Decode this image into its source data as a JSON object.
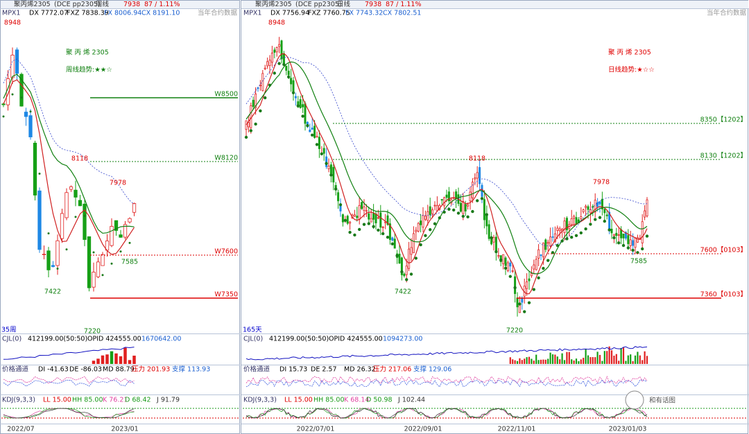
{
  "left_panel": {
    "header": {
      "name": "聚丙烯2305",
      "code": "(DCE pp2305)",
      "period": "周线",
      "price": "7938",
      "change": "87 / 1.11%",
      "note": "当年合约数据"
    },
    "indicators": {
      "label": "MPX1",
      "dx": "DX 7772.07",
      "fxz": "FXZ 7838.39",
      "fx": "FX 8006.94",
      "cx": "CX 8191.10"
    },
    "title": "聚 丙 烯   2305",
    "trend": "周线趋势:★★☆",
    "levels": [
      "W8500",
      "W8120",
      "W7600",
      "W7350"
    ],
    "annotations": [
      "8948",
      "8118",
      "7978",
      "7585",
      "7422",
      "7220"
    ],
    "count": "35周",
    "cjl": {
      "label": "CJL(0)",
      "vol": "412199.00(50:50)",
      "opid": "OPID 424555.00",
      "value": "1670642.00"
    },
    "channel": {
      "label": "价格通道",
      "di": "DI -41.63",
      "de": "DE -86.03",
      "md": "MD 88.79",
      "pressure": "压力 201.93",
      "support": "支撑 113.93"
    },
    "kdj": {
      "label": "KDJ(9,3,3)",
      "ll": "LL 15.00",
      "hh": "HH 85.00",
      "k": "K 76.21",
      "d": "D 68.42",
      "j": "J 91.79"
    },
    "dates": [
      "2022/07",
      "2023/01"
    ]
  },
  "right_panel": {
    "header": {
      "name": "聚丙烯2305",
      "code": "(DCE pp2305)",
      "period": "日线",
      "price": "7938",
      "change": "87 / 1.11%",
      "note": "当年合约数据"
    },
    "indicators": {
      "label": "MPX1",
      "dx": "DX 7756.94",
      "fxz": "FXZ 7760.75",
      "fx": "FX 7743.32",
      "cx": "CX 7802.51"
    },
    "title": "聚 丙 烯   2305",
    "trend": "日线趋势:★☆☆",
    "levels": [
      "8350【1202】",
      "8130【1202】",
      "7600【0103】",
      "7360【0103】"
    ],
    "annotations": [
      "8948",
      "8118",
      "7978",
      "7585",
      "7422",
      "7220"
    ],
    "count": "165天",
    "cjl": {
      "label": "CJL(0)",
      "vol": "412199.00(50:50)",
      "opid": "OPID 424555.00",
      "value": "1094273.00"
    },
    "channel": {
      "label": "价格通道",
      "di": "DI 15.73",
      "de": "DE 2.57",
      "md": "MD 26.32",
      "pressure": "压力 217.06",
      "support": "支撑 129.06"
    },
    "kdj": {
      "label": "KDJ(9,3,3)",
      "ll": "LL 15.00",
      "hh": "HH 85.00",
      "k": "K 68.14",
      "d": "D 50.98",
      "j": "J 102.44"
    },
    "dates": [
      "2022/07/01",
      "2022/09/01",
      "2022/11/01",
      "2023/01/03"
    ]
  },
  "watermark": "和有话图"
}
